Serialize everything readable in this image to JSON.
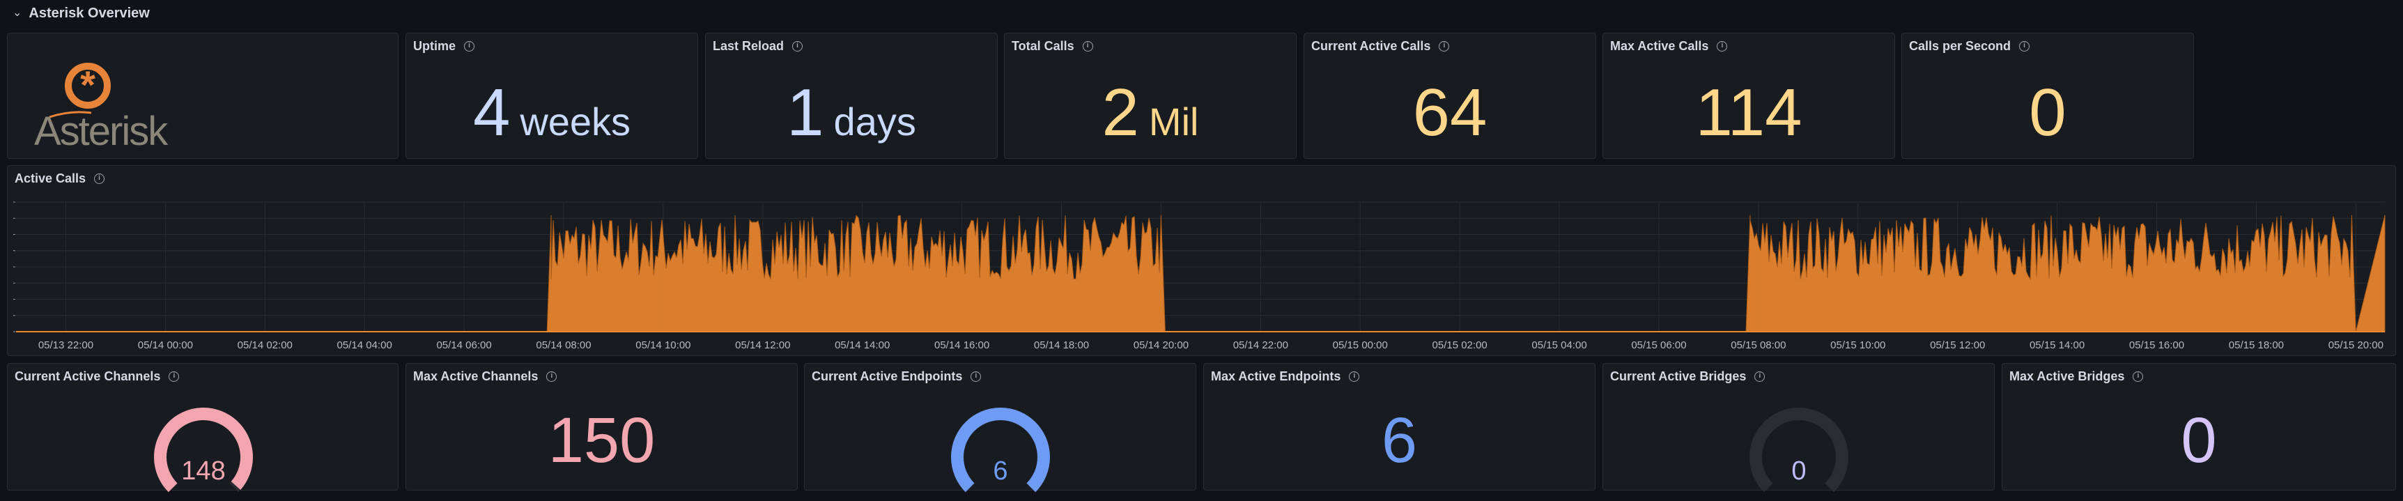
{
  "row": {
    "title": "Asterisk Overview",
    "collapse_icon": "chevron-down-icon"
  },
  "logo": {
    "text": "Asterisk",
    "color": "#e8833a"
  },
  "stats": {
    "uptime": {
      "title": "Uptime",
      "value": "4",
      "unit": "weeks",
      "color": "#cadaff"
    },
    "last_reload": {
      "title": "Last Reload",
      "value": "1",
      "unit": "days",
      "color": "#cadaff"
    },
    "total_calls": {
      "title": "Total Calls",
      "value": "2",
      "unit": "Mil",
      "color": "#ffd68a"
    },
    "current_active_calls": {
      "title": "Current Active Calls",
      "value": "64",
      "color": "#ffd68a"
    },
    "max_active_calls": {
      "title": "Max Active Calls",
      "value": "114",
      "color": "#ffd68a"
    },
    "calls_per_second": {
      "title": "Calls per Second",
      "value": "0",
      "color": "#ffd68a"
    }
  },
  "bottom": {
    "current_active_channels": {
      "title": "Current Active Channels",
      "value": "148",
      "max": 150,
      "color": "#f4a6b0",
      "type": "gauge"
    },
    "max_active_channels": {
      "title": "Max Active Channels",
      "value": "150",
      "color": "#f4a6b0",
      "type": "stat"
    },
    "current_active_endpoints": {
      "title": "Current Active Endpoints",
      "value": "6",
      "max": 6,
      "color": "#6e9cf5",
      "type": "gauge"
    },
    "max_active_endpoints": {
      "title": "Max Active Endpoints",
      "value": "6",
      "color": "#6e9cf5",
      "type": "stat"
    },
    "current_active_bridges": {
      "title": "Current Active Bridges",
      "value": "0",
      "max": 0,
      "color": "#bdbcff",
      "type": "gauge"
    },
    "max_active_bridges": {
      "title": "Max Active Bridges",
      "value": "0",
      "color": "#d4c4fa",
      "type": "stat"
    }
  },
  "chart_data": {
    "type": "area",
    "title": "Active Calls",
    "color": "#ef8a2f",
    "grid": true,
    "legend": "none",
    "x_ticks": [
      "05/13 22:00",
      "05/14 00:00",
      "05/14 02:00",
      "05/14 04:00",
      "05/14 06:00",
      "05/14 08:00",
      "05/14 10:00",
      "05/14 12:00",
      "05/14 14:00",
      "05/14 16:00",
      "05/14 18:00",
      "05/14 20:00",
      "05/14 22:00",
      "05/15 00:00",
      "05/15 02:00",
      "05/15 04:00",
      "05/15 06:00",
      "05/15 08:00",
      "05/15 10:00",
      "05/15 12:00",
      "05/15 14:00",
      "05/15 16:00",
      "05/15 18:00",
      "05/15 20:00"
    ],
    "series": [
      {
        "x": [
          "05/13 21:00",
          "05/14 07:40",
          "05/14 07:45",
          "05/14 20:00",
          "05/14 20:05",
          "05/15 07:45",
          "05/15 07:50",
          "05/15 19:55",
          "05/15 20:00",
          "05/15 20:35"
        ],
        "values": [
          0,
          0,
          90,
          90,
          0,
          0,
          90,
          90,
          0,
          90
        ]
      }
    ]
  }
}
